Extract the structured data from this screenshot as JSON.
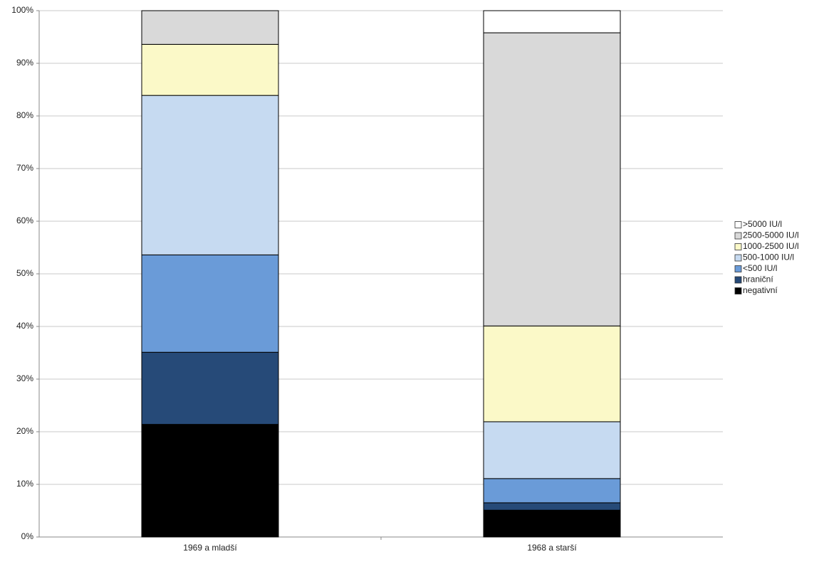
{
  "chart_data": {
    "type": "stacked_bar",
    "categories": [
      "1969 a mladší",
      "1968 a starší"
    ],
    "series": [
      {
        "name": "negativní",
        "color": "#000000",
        "values": [
          21.4,
          5.1
        ]
      },
      {
        "name": "hraniční",
        "color": "#264a78",
        "values": [
          13.7,
          1.4
        ]
      },
      {
        "name": "<500 IU/l",
        "color": "#6a9bd8",
        "values": [
          18.5,
          4.6
        ]
      },
      {
        "name": "500-1000 IU/l",
        "color": "#c6daf1",
        "values": [
          30.3,
          10.8
        ]
      },
      {
        "name": "1000-2500 IU/l",
        "color": "#fbf9c8",
        "values": [
          9.7,
          18.2
        ]
      },
      {
        "name": "2500-5000 IU/l",
        "color": "#d9d9d9",
        "values": [
          6.4,
          55.7
        ]
      },
      {
        "name": ">5000 IU/l",
        "color": "#ffffff",
        "values": [
          0,
          4.2
        ]
      }
    ],
    "ylim": [
      0,
      100
    ],
    "yticks": [
      {
        "value": 0,
        "label": "0%"
      },
      {
        "value": 10,
        "label": "10%"
      },
      {
        "value": 20,
        "label": "20%"
      },
      {
        "value": 30,
        "label": "30%"
      },
      {
        "value": 40,
        "label": "40%"
      },
      {
        "value": 50,
        "label": "50%"
      },
      {
        "value": 60,
        "label": "60%"
      },
      {
        "value": 70,
        "label": "70%"
      },
      {
        "value": 80,
        "label": "80%"
      },
      {
        "value": 90,
        "label": "90%"
      },
      {
        "value": 100,
        "label": "100%"
      }
    ],
    "grid": true,
    "legend": "right"
  }
}
